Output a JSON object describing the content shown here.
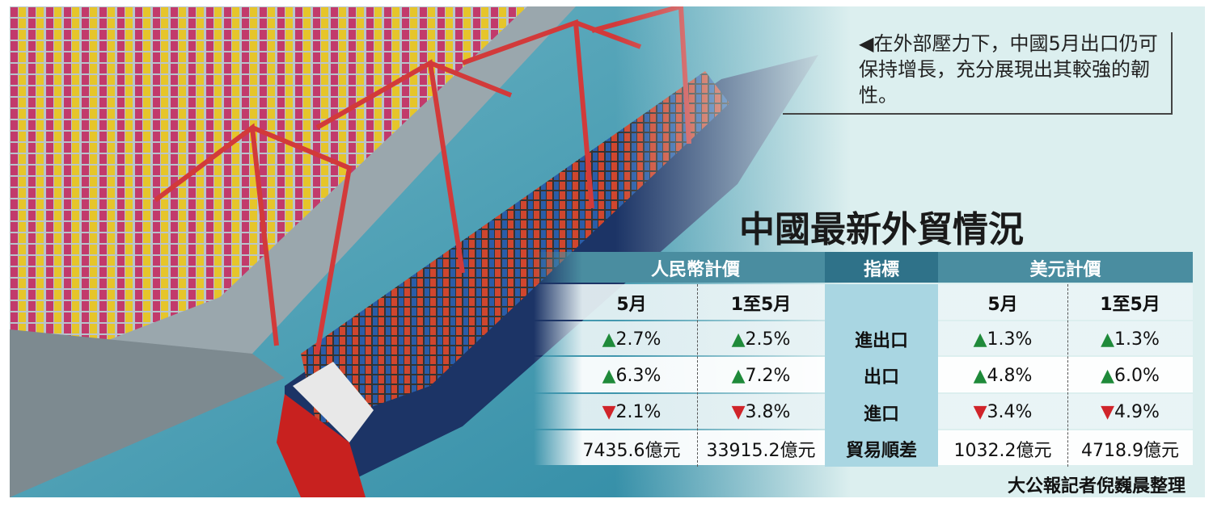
{
  "caption": "◀在外部壓力下，中國5月出口仍可保持增長，充分展現出其較強的韌性。",
  "title": "中國最新外貿情況",
  "table": {
    "groups": [
      "人民幣計價",
      "指標",
      "美元計價"
    ],
    "subheaders": [
      "5月",
      "1至5月",
      "5月",
      "1至5月"
    ],
    "rows": [
      {
        "label": "進出口",
        "cells": [
          {
            "arrow": "▲",
            "text": "2.7%"
          },
          {
            "arrow": "▲",
            "text": "2.5%"
          },
          {
            "arrow": "▲",
            "text": "1.3%"
          },
          {
            "arrow": "▲",
            "text": "1.3%"
          }
        ]
      },
      {
        "label": "出口",
        "cells": [
          {
            "arrow": "▲",
            "text": "6.3%"
          },
          {
            "arrow": "▲",
            "text": "7.2%"
          },
          {
            "arrow": "▲",
            "text": "4.8%"
          },
          {
            "arrow": "▲",
            "text": "6.0%"
          }
        ]
      },
      {
        "label": "進口",
        "cells": [
          {
            "arrow": "▼",
            "text": "2.1%"
          },
          {
            "arrow": "▼",
            "text": "3.8%"
          },
          {
            "arrow": "▼",
            "text": "3.4%"
          },
          {
            "arrow": "▼",
            "text": "4.9%"
          }
        ]
      },
      {
        "label": "貿易順差",
        "cells": [
          {
            "text": "7435.6億元"
          },
          {
            "text": "33915.2億元"
          },
          {
            "text": "1032.2億元"
          },
          {
            "text": "4718.9億元"
          }
        ]
      }
    ]
  },
  "credit": "大公報記者倪巍晨整理"
}
